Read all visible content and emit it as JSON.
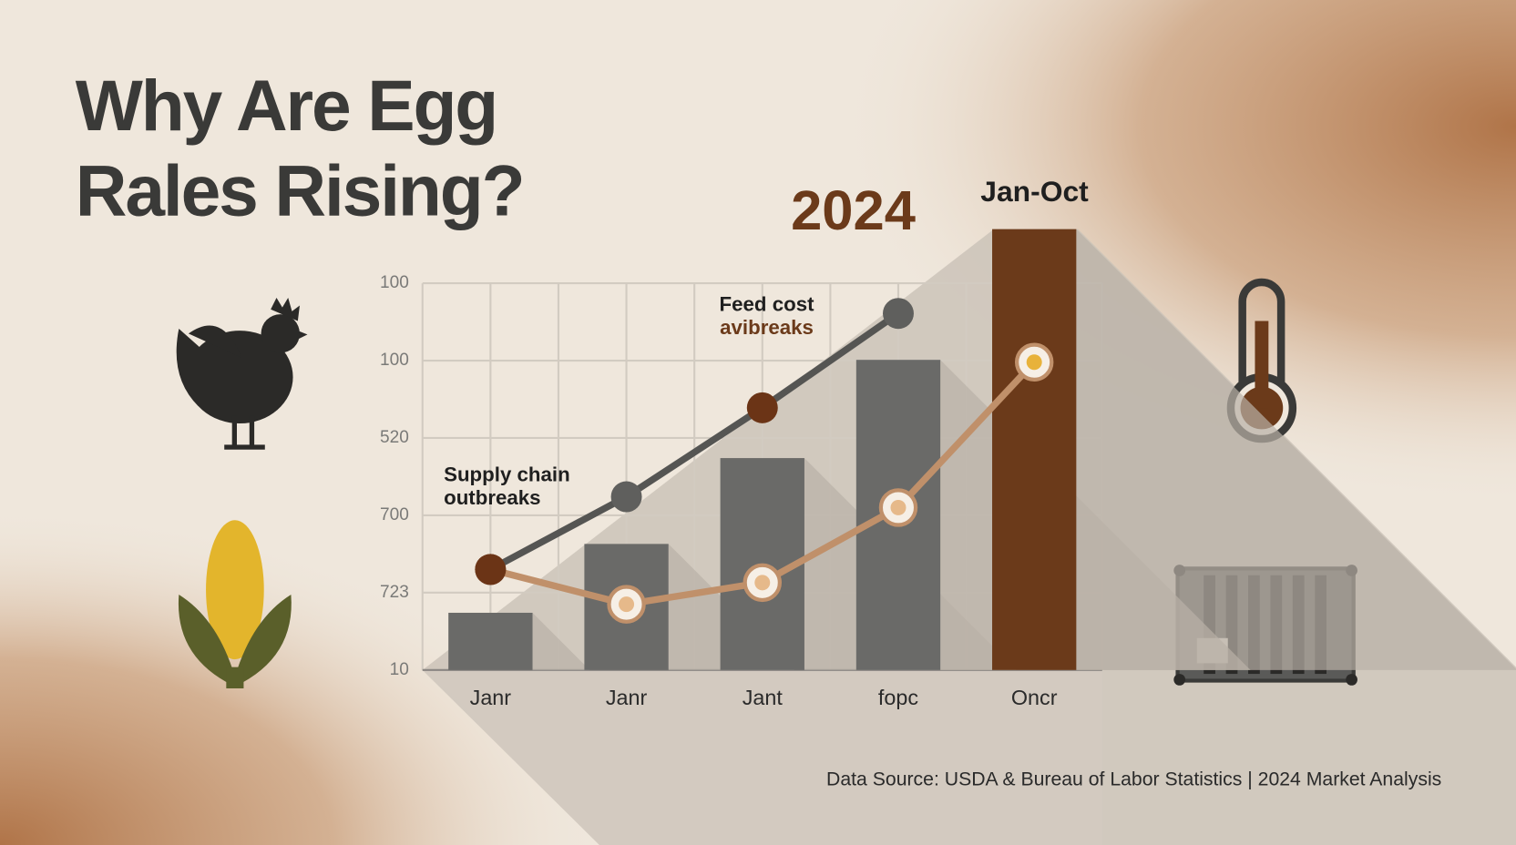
{
  "chart_data": {
    "type": "bar_line",
    "title_lines": [
      "Why Are Egg",
      "Rales Rising?"
    ],
    "year_label": "2024",
    "period_label": "Jan-Oct",
    "annotations": [
      {
        "lines": [
          "Supply chain",
          "outbreaks"
        ],
        "color": "#1f1f1f"
      },
      {
        "lines": [
          "Feed cost",
          "avibreaks"
        ],
        "colors": [
          "#1f1f1f",
          "#6b3a1a"
        ]
      }
    ],
    "source": "Data Source: USDA & Bureau of Labor Statistics | 2024 Market Analysis",
    "categories": [
      "Janr",
      "Janr",
      "Jant",
      "fopc",
      "Oncr"
    ],
    "values": [
      0.74,
      1.63,
      2.74,
      4.01,
      5.7
    ],
    "bar_colors": [
      "#6a6a68",
      "#6a6a68",
      "#6a6a68",
      "#6a6a68",
      "#6b3a1a"
    ],
    "series": [
      {
        "color": "#555553",
        "values": [
          1.3,
          2.24,
          3.39,
          4.61,
          null
        ],
        "marker_colors": [
          "#6b3416",
          "#5f5f5d",
          "#6b3416",
          "#5f5f5d",
          null
        ]
      },
      {
        "color": "#c0906a",
        "values": [
          1.3,
          0.85,
          1.13,
          2.1,
          3.98
        ],
        "marker_colors": [
          "#6b3416",
          "#e6b98a",
          "#e6b98a",
          "#e6b98a",
          "#e8b23a"
        ]
      }
    ],
    "ylim": [
      0,
      5
    ],
    "yticks": [
      {
        "value": 0,
        "label": "10"
      },
      {
        "value": 1,
        "label": "723"
      },
      {
        "value": 2,
        "label": "700"
      },
      {
        "value": 3,
        "label": "520"
      },
      {
        "value": 4,
        "label": "100"
      },
      {
        "value": 5,
        "label": "100"
      }
    ],
    "grid": true
  }
}
